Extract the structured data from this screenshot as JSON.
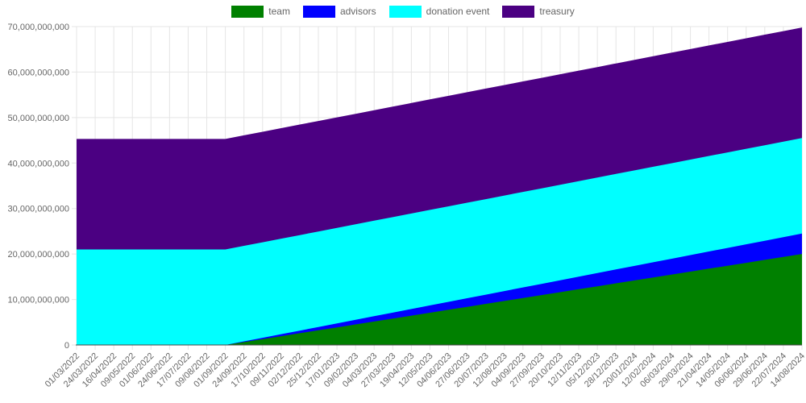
{
  "style": {
    "background": "#ffffff",
    "grid_color": "#e5e5e5",
    "tick_color": "#666666",
    "axis_color": "#444444",
    "legend_text_color": "#666666"
  },
  "chart_data": {
    "type": "area",
    "stacked": true,
    "title": "",
    "xlabel": "",
    "ylabel": "",
    "grid": true,
    "legend_position": "top",
    "ylim": [
      0,
      70000000000
    ],
    "y_tick_step": 10000000000,
    "y_tick_labels": [
      "0",
      "10,000,000,000",
      "20,000,000,000",
      "30,000,000,000",
      "40,000,000,000",
      "50,000,000,000",
      "60,000,000,000",
      "70,000,000,000"
    ],
    "x_labels": [
      "01/03/2022",
      "24/03/2022",
      "16/04/2022",
      "09/05/2022",
      "01/06/2022",
      "24/06/2022",
      "17/07/2022",
      "09/08/2022",
      "01/09/2022",
      "24/09/2022",
      "17/10/2022",
      "09/11/2022",
      "02/12/2022",
      "25/12/2022",
      "17/01/2023",
      "09/02/2023",
      "04/03/2023",
      "27/03/2023",
      "19/04/2023",
      "12/05/2023",
      "04/06/2023",
      "27/06/2023",
      "20/07/2023",
      "12/08/2023",
      "04/09/2023",
      "27/09/2023",
      "20/10/2023",
      "12/11/2023",
      "05/12/2023",
      "28/12/2023",
      "20/01/2024",
      "12/02/2024",
      "06/03/2024",
      "29/03/2024",
      "21/04/2024",
      "14/05/2024",
      "06/06/2024",
      "29/06/2024",
      "22/07/2024",
      "14/08/2024"
    ],
    "series": [
      {
        "name": "team",
        "color": "#008000",
        "values": [
          0,
          0,
          0,
          0,
          0,
          0,
          0,
          0,
          0,
          645161290,
          1290322581,
          1935483871,
          2580645161,
          3225806452,
          3870967742,
          4516129032,
          5161290323,
          5806451613,
          6451612903,
          7096774194,
          7741935484,
          8387096774,
          9032258065,
          9677419355,
          10322580645,
          10967741935,
          11612903226,
          12258064516,
          12903225806,
          13548387097,
          14193548387,
          14838709677,
          15483870968,
          16129032258,
          16774193548,
          17419354839,
          18064516129,
          18709677419,
          19354838710,
          20000000000
        ]
      },
      {
        "name": "advisors",
        "color": "#0000ff",
        "values": [
          0,
          0,
          0,
          0,
          0,
          0,
          0,
          0,
          0,
          145161290,
          290322581,
          435483871,
          580645161,
          725806452,
          870967742,
          1016129032,
          1161290323,
          1306451613,
          1451612903,
          1596774194,
          1741935484,
          1887096774,
          2032258065,
          2177419355,
          2322580645,
          2467741935,
          2612903226,
          2758064516,
          2903225806,
          3048387097,
          3193548387,
          3338709677,
          3483870968,
          3629032258,
          3774193548,
          3919354839,
          4064516129,
          4209677419,
          4354838710,
          4500000000
        ]
      },
      {
        "name": "donation event",
        "color": "#00ffff",
        "values": [
          21000000000,
          21000000000,
          21000000000,
          21000000000,
          21000000000,
          21000000000,
          21000000000,
          21000000000,
          21000000000,
          21000000000,
          21000000000,
          21000000000,
          21000000000,
          21000000000,
          21000000000,
          21000000000,
          21000000000,
          21000000000,
          21000000000,
          21000000000,
          21000000000,
          21000000000,
          21000000000,
          21000000000,
          21000000000,
          21000000000,
          21000000000,
          21000000000,
          21000000000,
          21000000000,
          21000000000,
          21000000000,
          21000000000,
          21000000000,
          21000000000,
          21000000000,
          21000000000,
          21000000000,
          21000000000,
          21000000000
        ]
      },
      {
        "name": "treasury",
        "color": "#4b0082",
        "values": [
          24300000000,
          24300000000,
          24300000000,
          24300000000,
          24300000000,
          24300000000,
          24300000000,
          24300000000,
          24300000000,
          24300000000,
          24300000000,
          24300000000,
          24300000000,
          24300000000,
          24300000000,
          24300000000,
          24300000000,
          24300000000,
          24300000000,
          24300000000,
          24300000000,
          24300000000,
          24300000000,
          24300000000,
          24300000000,
          24300000000,
          24300000000,
          24300000000,
          24300000000,
          24300000000,
          24300000000,
          24300000000,
          24300000000,
          24300000000,
          24300000000,
          24300000000,
          24300000000,
          24300000000,
          24300000000,
          24300000000
        ]
      }
    ]
  }
}
